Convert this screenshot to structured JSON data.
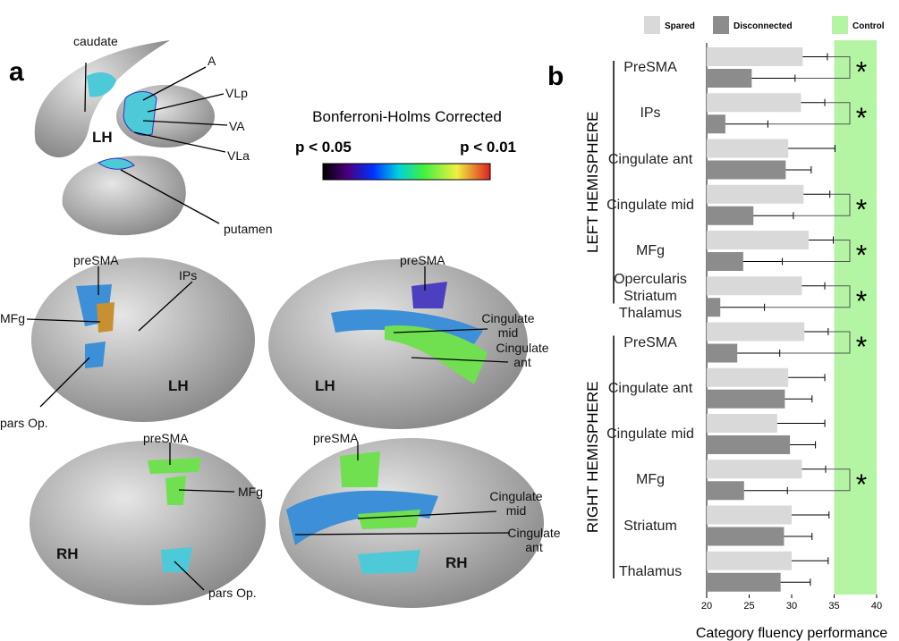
{
  "panel_a": {
    "panel_label": "a",
    "labels": [
      "caudate",
      "A",
      "VLp",
      "VA",
      "VLa",
      "LH",
      "putamen",
      "preSMA",
      "IPs",
      "MFg",
      "pars Op.",
      "LH",
      "preSMA",
      "Cingulate mid",
      "Cingulate ant",
      "LH",
      "preSMA",
      "MFg",
      "RH",
      "pars Op.",
      "preSMA",
      "Cingulate mid",
      "Cingulate ant",
      "RH"
    ],
    "colorbar": {
      "title": "Bonferroni-Holms Corrected",
      "low_label": "p < 0.05",
      "high_label": "p < 0.01"
    }
  },
  "chart_data": {
    "type": "hbar",
    "panel_label": "b",
    "xlabel": "Category fluency performance",
    "categories": [
      "PreSMA",
      "IPs",
      "Cingulate ant",
      "Cingulate mid",
      "MFg",
      "Opercularis Striatum Thalamus",
      "PreSMA",
      "Cingulate ant",
      "Cingulate mid",
      "MFg",
      "Striatum",
      "Thalamus"
    ],
    "groups": [
      {
        "label": "LEFT HEMISPHERE",
        "count": 6
      },
      {
        "label": "RIGHT HEMISPHERE",
        "count": 6
      }
    ],
    "series": [
      {
        "name": "Spared",
        "color": "#d9d9d9",
        "values": [
          31.3,
          31.1,
          29.6,
          31.4,
          32.0,
          31.2,
          31.5,
          29.6,
          28.3,
          31.2,
          30.0,
          30.0
        ],
        "errors": [
          2.9,
          2.8,
          5.5,
          3.1,
          2.9,
          2.7,
          2.8,
          4.3,
          5.6,
          2.8,
          4.4,
          4.3
        ]
      },
      {
        "name": "Disconnected",
        "color": "#8c8c8c",
        "values": [
          25.3,
          22.2,
          29.3,
          25.5,
          24.3,
          21.6,
          23.6,
          29.2,
          29.8,
          24.4,
          29.1,
          28.7
        ],
        "errors": [
          5.1,
          5.0,
          3.0,
          4.7,
          4.6,
          5.2,
          5.0,
          3.2,
          3.0,
          5.1,
          3.3,
          3.5
        ]
      }
    ],
    "control": {
      "name": "Control",
      "color": "#b4f5a4",
      "range": [
        35,
        40
      ]
    },
    "significance": [
      "*",
      "*",
      null,
      "*",
      "*",
      "*",
      "*",
      null,
      null,
      "*",
      null,
      null
    ],
    "xlim": [
      20,
      40
    ],
    "xticks": [
      20,
      25,
      30,
      35,
      40
    ]
  }
}
